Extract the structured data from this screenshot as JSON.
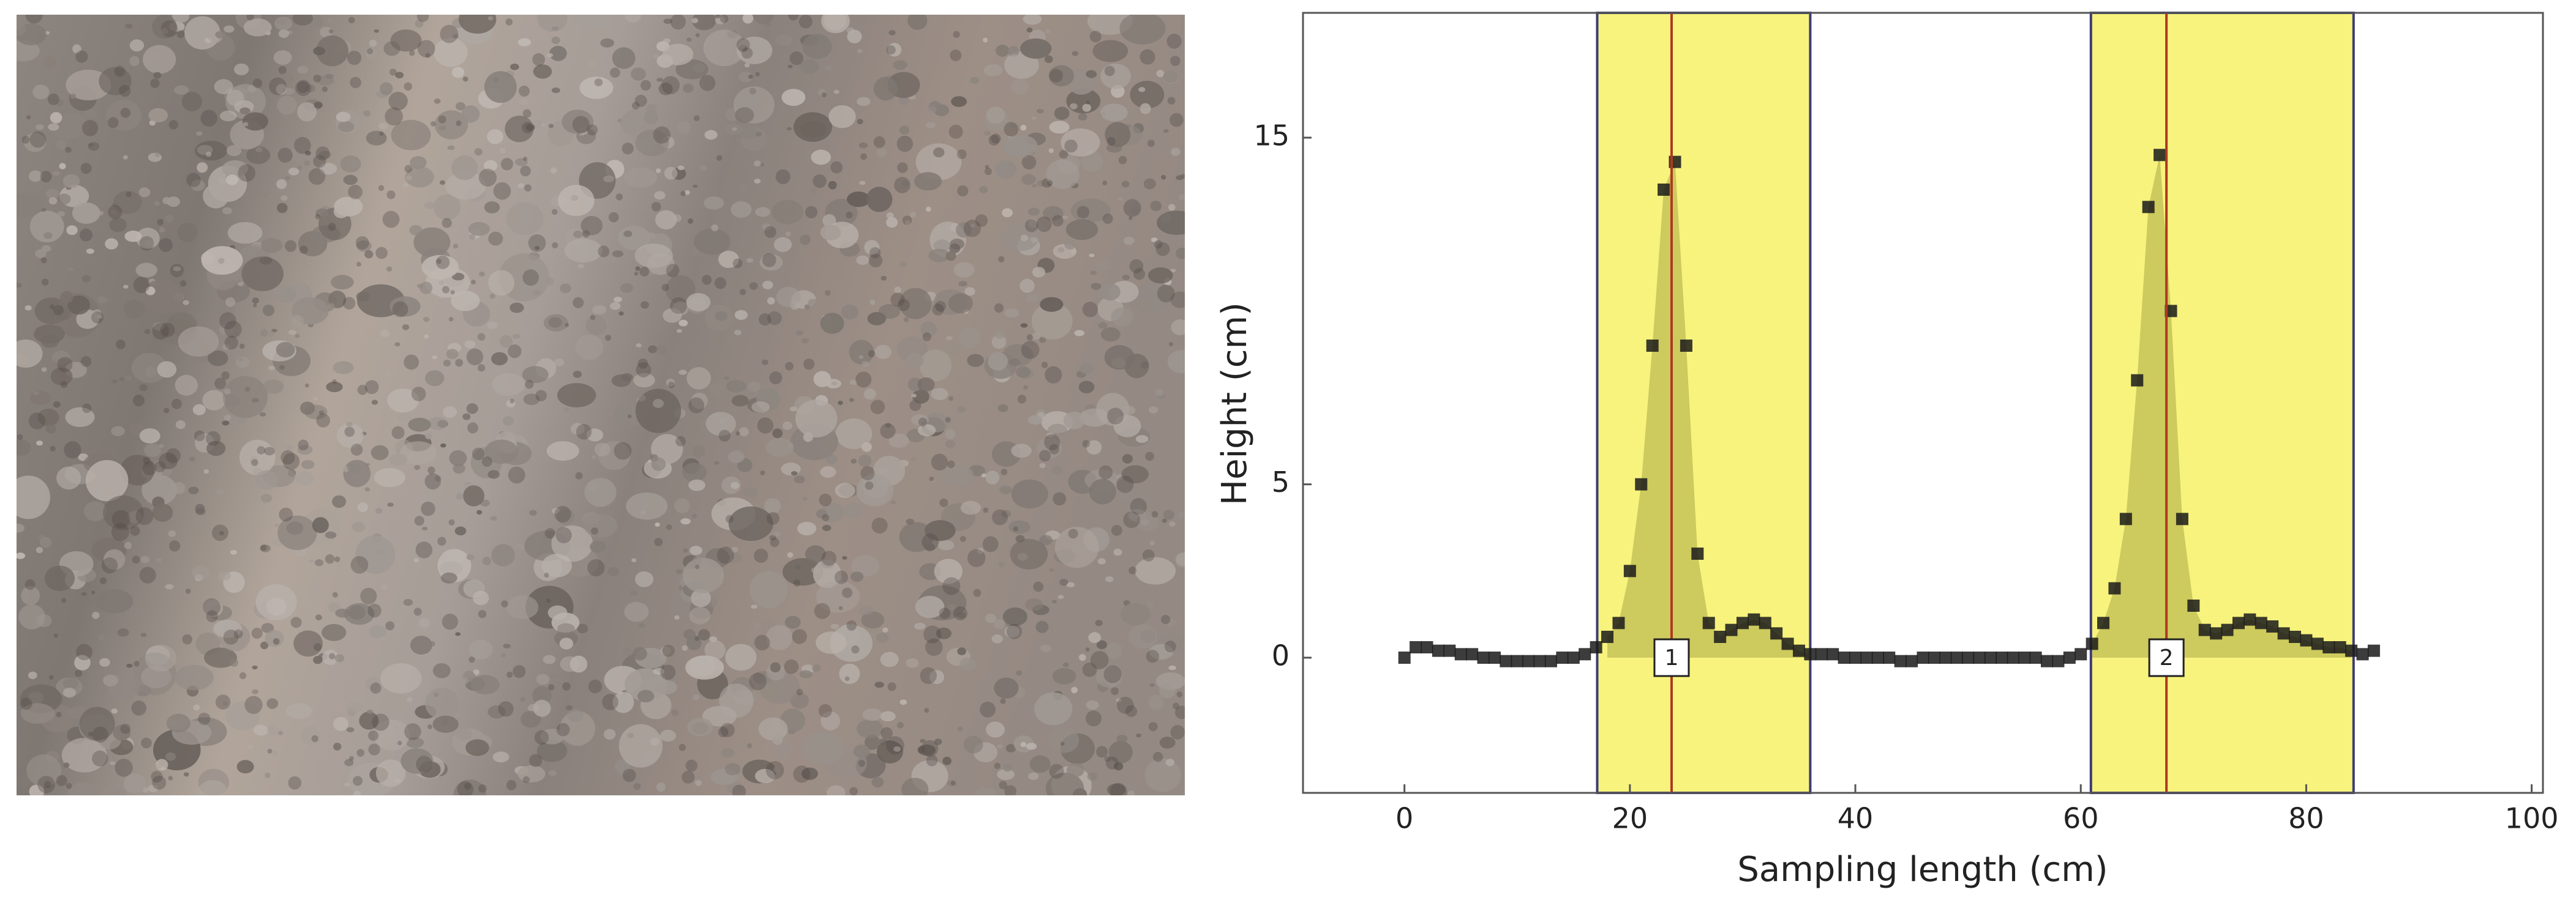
{
  "chart_data": {
    "type": "scatter",
    "x_label": "Sampling length (cm)",
    "y_label": "Height (cm)",
    "x": [
      0,
      1,
      2,
      3,
      4,
      5,
      6,
      7,
      8,
      9,
      10,
      11,
      12,
      13,
      14,
      15,
      16,
      17,
      18,
      19,
      20,
      21,
      22,
      23,
      24,
      25,
      26,
      27,
      28,
      29,
      30,
      31,
      32,
      33,
      34,
      35,
      36,
      37,
      38,
      39,
      40,
      41,
      42,
      43,
      44,
      45,
      46,
      47,
      48,
      49,
      50,
      51,
      52,
      53,
      54,
      55,
      56,
      57,
      58,
      59,
      60,
      61,
      62,
      63,
      64,
      65,
      66,
      67,
      68,
      69,
      70,
      71,
      72,
      73,
      74,
      75,
      76,
      77,
      78,
      79,
      80,
      81,
      82,
      83,
      84,
      85,
      86
    ],
    "values": [
      0,
      0.3,
      0.3,
      0.2,
      0.2,
      0.1,
      0.1,
      0,
      0,
      -0.1,
      -0.1,
      -0.1,
      -0.1,
      -0.1,
      0,
      0,
      0.1,
      0.3,
      0.6,
      1,
      2.5,
      5,
      9,
      13.5,
      14.3,
      9,
      3,
      1,
      0.6,
      0.8,
      1,
      1.1,
      1,
      0.7,
      0.4,
      0.2,
      0.1,
      0.1,
      0.1,
      0,
      0,
      0,
      0,
      0,
      -0.1,
      -0.1,
      0,
      0,
      0,
      0,
      0,
      0,
      0,
      0,
      0,
      0,
      0,
      -0.1,
      -0.1,
      0,
      0.1,
      0.4,
      1,
      2,
      4,
      8,
      13,
      14.5,
      10,
      4,
      1.5,
      0.8,
      0.7,
      0.8,
      1,
      1.1,
      1,
      0.9,
      0.7,
      0.6,
      0.5,
      0.4,
      0.3,
      0.3,
      0.2,
      0.1,
      0.2
    ],
    "color": "#1a1a1a",
    "xlim": [
      -9,
      101
    ],
    "ylim": [
      -3.9,
      18.6
    ],
    "xticks": [
      0,
      20,
      40,
      60,
      80,
      100
    ],
    "yticks": [
      0,
      5,
      15
    ],
    "regions": [
      {
        "x": [
          17.1,
          36
        ],
        "peak": 23.7,
        "label": "1"
      },
      {
        "x": [
          60.9,
          84.2
        ],
        "peak": 67.6,
        "label": "2"
      }
    ]
  }
}
